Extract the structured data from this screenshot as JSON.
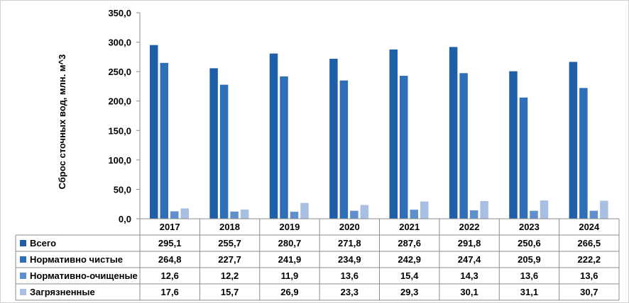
{
  "chart_data": {
    "type": "bar",
    "categories": [
      "2017",
      "2018",
      "2019",
      "2020",
      "2021",
      "2022",
      "2023",
      "2024"
    ],
    "series": [
      {
        "name": "Всего",
        "color": "#1F5FA9",
        "values": [
          "295,1",
          "255,7",
          "280,7",
          "271,8",
          "287,6",
          "291,8",
          "250,6",
          "266,5"
        ]
      },
      {
        "name": "Нормативно чистые",
        "color": "#2F6FB8",
        "values": [
          "264,8",
          "227,7",
          "241,9",
          "234,9",
          "242,9",
          "247,4",
          "205,9",
          "222,2"
        ]
      },
      {
        "name": "Нормативно-очищеные",
        "color": "#5F8FCC",
        "values": [
          "12,6",
          "12,2",
          "11,9",
          "13,6",
          "15,4",
          "14,3",
          "13,6",
          "13,6"
        ]
      },
      {
        "name": "Загрязненные",
        "color": "#A9BEE3",
        "values": [
          "17,6",
          "15,7",
          "26,9",
          "23,3",
          "29,3",
          "30,1",
          "31,1",
          "30,7"
        ]
      }
    ],
    "ylabel": "Сброс сточных вод, млн. м^3",
    "ylim": [
      0,
      350
    ],
    "yticks": [
      "0,0",
      "50,0",
      "100,0",
      "150,0",
      "200,0",
      "250,0",
      "300,0",
      "350,0"
    ],
    "grid": false,
    "legend": "data-table"
  }
}
